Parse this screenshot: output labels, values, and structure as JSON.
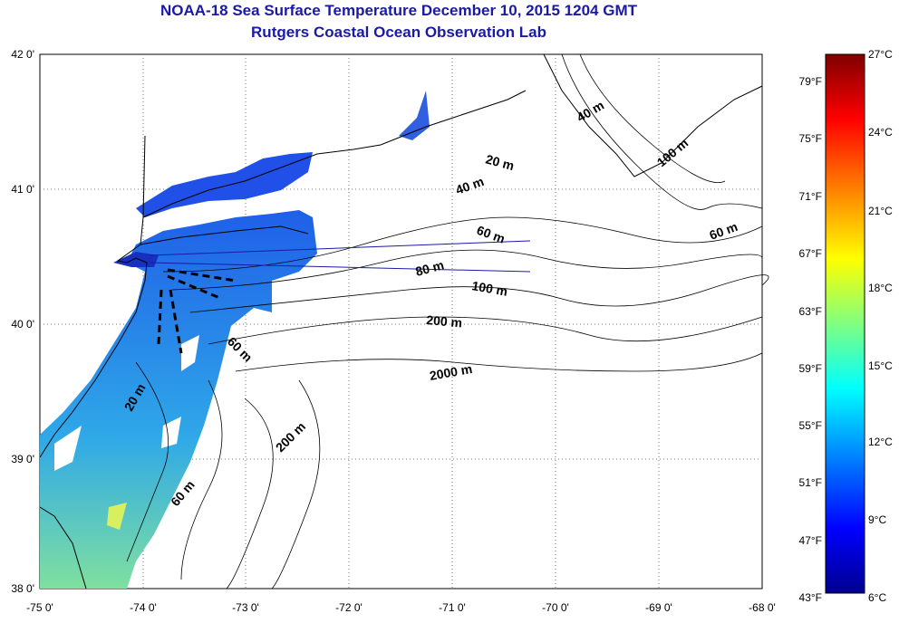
{
  "title": "NOAA-18 Sea Surface Temperature December 10, 2015 1204 GMT",
  "subtitle": "Rutgers Coastal Ocean Observation Lab",
  "map": {
    "lon_ticks": [
      "-75 0'",
      "-74 0'",
      "-73 0'",
      "-72 0'",
      "-71 0'",
      "-70 0'",
      "-69 0'",
      "-68 0'"
    ],
    "lat_ticks": [
      "42 0'",
      "41 0'",
      "40 0'",
      "39 0'",
      "38 0'"
    ],
    "contour_labels": [
      "20 m",
      "40 m",
      "40 m",
      "60 m",
      "60 m",
      "80 m",
      "100 m",
      "100 m",
      "200 m",
      "2000 m",
      "60 m",
      "200 m",
      "60 m",
      "20 m"
    ]
  },
  "colorbar": {
    "celsius": [
      "27°C",
      "24°C",
      "21°C",
      "18°C",
      "15°C",
      "12°C",
      "9°C",
      "6°C"
    ],
    "fahrenheit": [
      "79°F",
      "75°F",
      "71°F",
      "67°F",
      "63°F",
      "59°F",
      "55°F",
      "51°F",
      "47°F",
      "43°F"
    ],
    "colors": [
      "#7f0000",
      "#ff0000",
      "#ff8000",
      "#ffff00",
      "#80ff80",
      "#00ffff",
      "#0080ff",
      "#0000ff",
      "#00008f"
    ]
  }
}
